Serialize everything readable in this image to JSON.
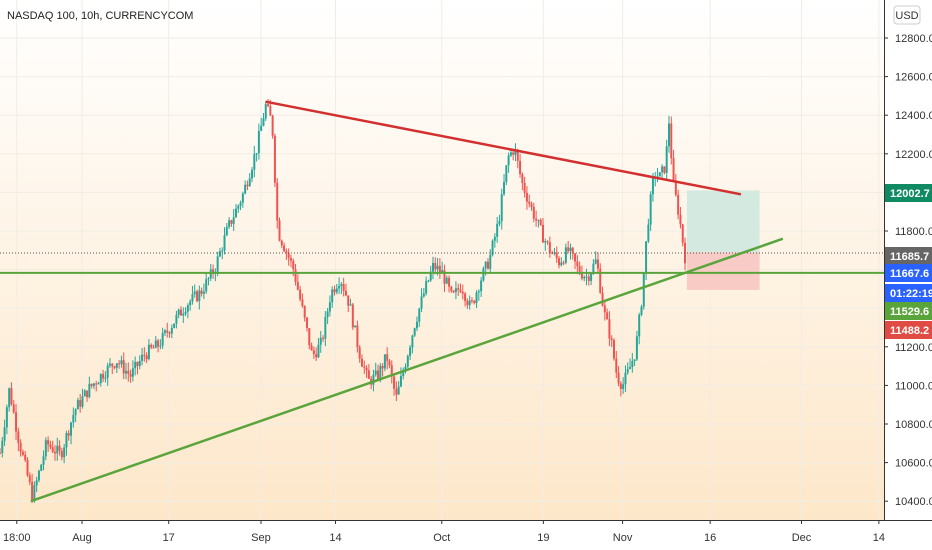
{
  "header": {
    "title": "NASDAQ 100, 10h, CURRENCYCOM"
  },
  "currency_button": {
    "label": "USD"
  },
  "colors": {
    "up": "#26a69a",
    "down": "#ef5350",
    "resistance": "#d32f2f",
    "support": "#5aa43c",
    "target_zone": "#cfe9df",
    "stop_zone": "#f7c7c2",
    "tag_last": "#666666",
    "tag_current": "#2962ff",
    "tag_target": "#0f8a63",
    "tag_support": "#5aa43c",
    "tag_stop": "#e04b43"
  },
  "chart_data": {
    "type": "candlestick",
    "symbol": "NASDAQ 100",
    "interval": "10h",
    "x_ticks": [
      "18:00",
      "Aug",
      "17",
      "Sep",
      "14",
      "Oct",
      "19",
      "Nov",
      "16",
      "Dec",
      "14"
    ],
    "y_ticks": [
      "12800.0",
      "12600.0",
      "12400.0",
      "12200.0",
      "12000.0",
      "11800.0",
      "11600.0",
      "11400.0",
      "11200.0",
      "11000.0",
      "10800.0",
      "10600.0",
      "10400.0"
    ],
    "ylim": [
      10300,
      13000
    ],
    "price_tags": [
      {
        "label": "11685.7",
        "value": 11685.7,
        "role": "last"
      },
      {
        "label": "11667.6",
        "value": 11667.6,
        "role": "current"
      },
      {
        "label": "01:22:19",
        "value": 11580,
        "role": "countdown"
      },
      {
        "label": "12002.7",
        "value": 12002.7,
        "role": "target"
      },
      {
        "label": "11529.6",
        "value": 11529.6,
        "role": "support"
      },
      {
        "label": "11488.2",
        "value": 11488.2,
        "role": "stop"
      }
    ],
    "horizontal_line": 11583,
    "resistance_line": {
      "from": [
        0.285,
        12470
      ],
      "to": [
        0.795,
        11990
      ]
    },
    "support_line": {
      "from": [
        0.033,
        10400
      ],
      "to": [
        0.84,
        11760
      ]
    },
    "target_zone": {
      "x": [
        0.737,
        0.815
      ],
      "y": [
        11690,
        12010
      ]
    },
    "stop_zone": {
      "x": [
        0.737,
        0.815
      ],
      "y": [
        11495,
        11690
      ]
    },
    "close_path": [
      [
        0.0,
        10650
      ],
      [
        0.01,
        10980
      ],
      [
        0.02,
        10720
      ],
      [
        0.035,
        10420
      ],
      [
        0.05,
        10700
      ],
      [
        0.065,
        10640
      ],
      [
        0.08,
        10870
      ],
      [
        0.095,
        10980
      ],
      [
        0.11,
        11060
      ],
      [
        0.125,
        11130
      ],
      [
        0.14,
        11050
      ],
      [
        0.155,
        11160
      ],
      [
        0.17,
        11210
      ],
      [
        0.185,
        11320
      ],
      [
        0.2,
        11420
      ],
      [
        0.215,
        11480
      ],
      [
        0.23,
        11600
      ],
      [
        0.245,
        11820
      ],
      [
        0.26,
        11980
      ],
      [
        0.275,
        12220
      ],
      [
        0.285,
        12450
      ],
      [
        0.292,
        12360
      ],
      [
        0.298,
        11800
      ],
      [
        0.305,
        11720
      ],
      [
        0.315,
        11600
      ],
      [
        0.325,
        11380
      ],
      [
        0.335,
        11150
      ],
      [
        0.345,
        11220
      ],
      [
        0.355,
        11480
      ],
      [
        0.365,
        11560
      ],
      [
        0.375,
        11420
      ],
      [
        0.385,
        11180
      ],
      [
        0.395,
        11020
      ],
      [
        0.405,
        11050
      ],
      [
        0.415,
        11150
      ],
      [
        0.425,
        10930
      ],
      [
        0.435,
        11120
      ],
      [
        0.445,
        11320
      ],
      [
        0.455,
        11480
      ],
      [
        0.465,
        11620
      ],
      [
        0.475,
        11580
      ],
      [
        0.485,
        11450
      ],
      [
        0.495,
        11520
      ],
      [
        0.505,
        11400
      ],
      [
        0.515,
        11540
      ],
      [
        0.525,
        11650
      ],
      [
        0.535,
        11850
      ],
      [
        0.545,
        12180
      ],
      [
        0.552,
        12230
      ],
      [
        0.56,
        12050
      ],
      [
        0.57,
        11920
      ],
      [
        0.58,
        11800
      ],
      [
        0.59,
        11700
      ],
      [
        0.6,
        11640
      ],
      [
        0.61,
        11700
      ],
      [
        0.62,
        11600
      ],
      [
        0.63,
        11560
      ],
      [
        0.64,
        11650
      ],
      [
        0.648,
        11380
      ],
      [
        0.655,
        11250
      ],
      [
        0.662,
        11050
      ],
      [
        0.668,
        11000
      ],
      [
        0.675,
        11080
      ],
      [
        0.682,
        11180
      ],
      [
        0.688,
        11420
      ],
      [
        0.695,
        11840
      ],
      [
        0.702,
        12100
      ],
      [
        0.708,
        12080
      ],
      [
        0.714,
        12140
      ],
      [
        0.718,
        12380
      ],
      [
        0.722,
        12050
      ],
      [
        0.728,
        11900
      ],
      [
        0.735,
        11667
      ]
    ]
  }
}
